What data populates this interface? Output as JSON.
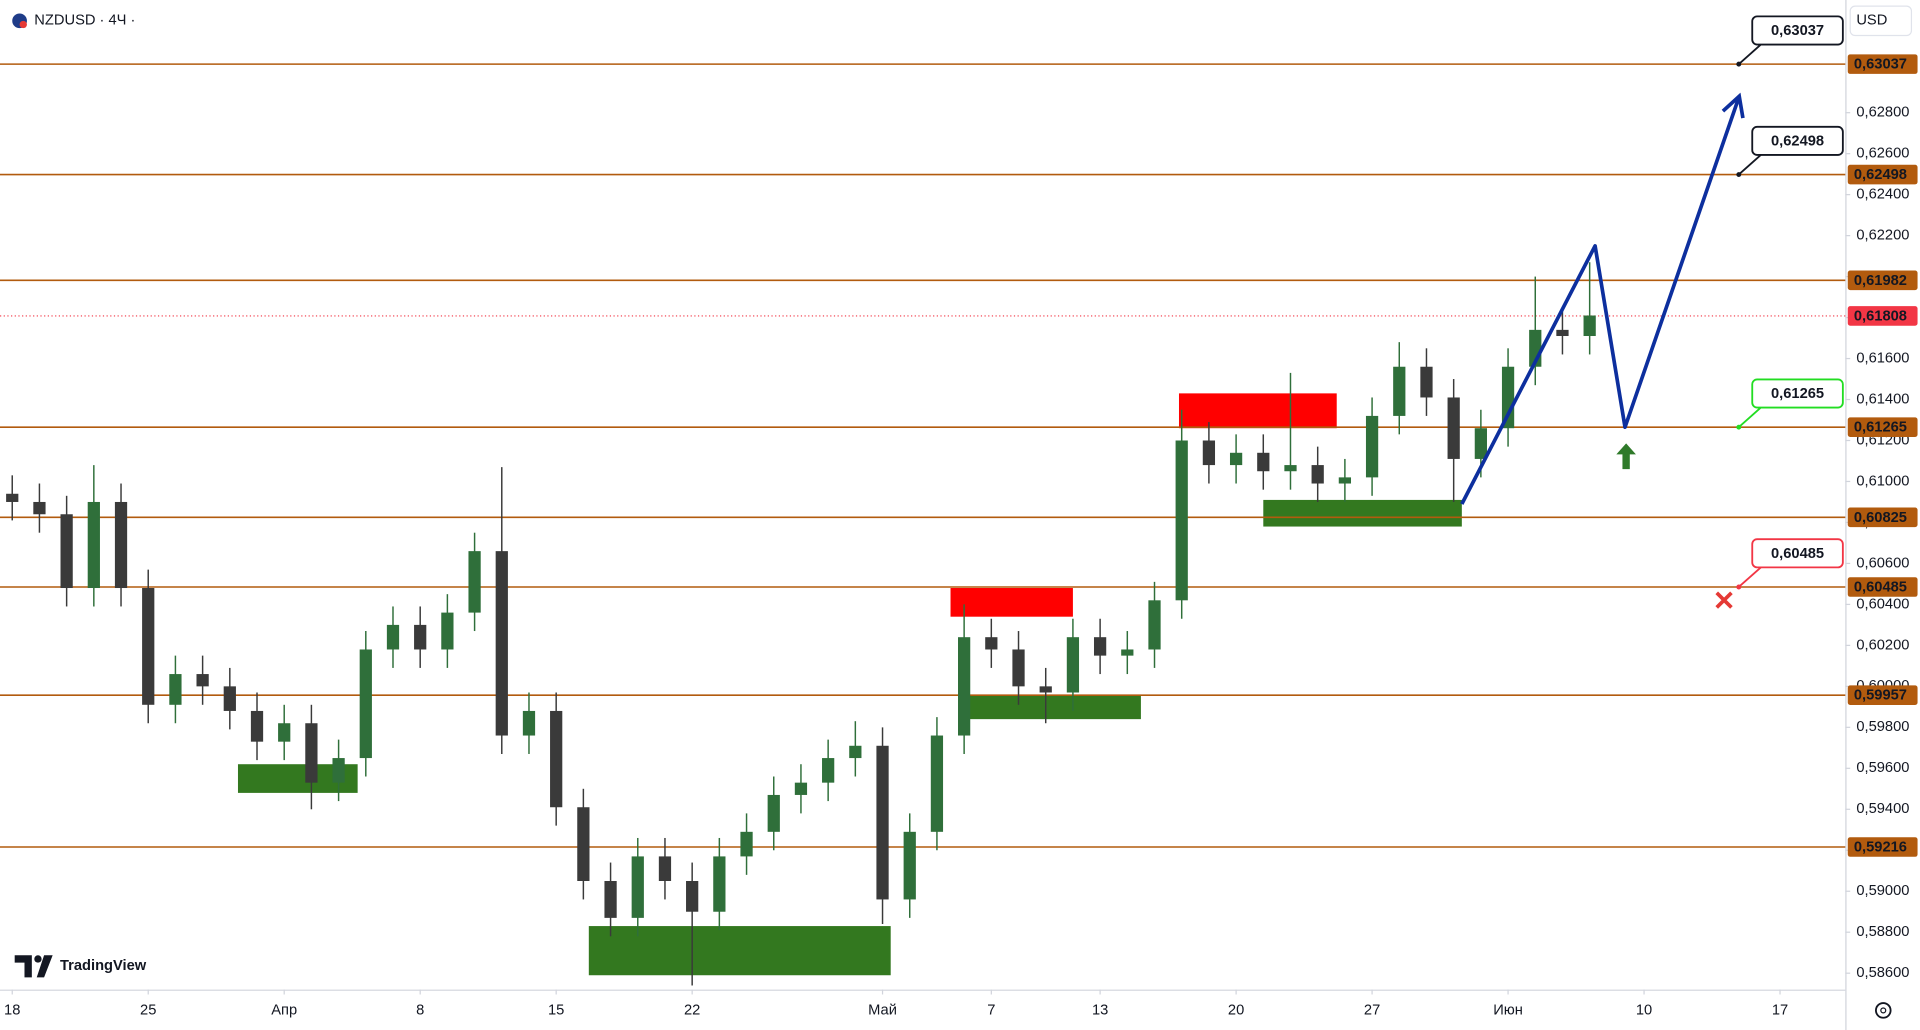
{
  "chart_data": {
    "type": "candlestick",
    "title": "NZDUSD · 4Ч ·",
    "currency": "USD",
    "brand": "TradingView",
    "grid": false,
    "up_color": "#2f6f3a",
    "down_color": "#3a3a3a",
    "xlim": [
      -0.45,
      67.4
    ],
    "xticks": [
      {
        "value": 0,
        "label": "18"
      },
      {
        "value": 5,
        "label": "25"
      },
      {
        "value": 10,
        "label": "Апр"
      },
      {
        "value": 15,
        "label": "8"
      },
      {
        "value": 20,
        "label": "15"
      },
      {
        "value": 25,
        "label": "22"
      },
      {
        "value": 32,
        "label": "Май"
      },
      {
        "value": 36,
        "label": "7"
      },
      {
        "value": 40,
        "label": "13"
      },
      {
        "value": 45,
        "label": "20"
      },
      {
        "value": 50,
        "label": "27"
      },
      {
        "value": 55,
        "label": "Июн"
      },
      {
        "value": 60,
        "label": "10"
      },
      {
        "value": 65,
        "label": "17"
      }
    ],
    "ylim": [
      0.5852,
      0.6335
    ],
    "yticks": [
      {
        "value": 0.586,
        "label": "0,58600"
      },
      {
        "value": 0.588,
        "label": "0,58800"
      },
      {
        "value": 0.59,
        "label": "0,59000"
      },
      {
        "value": 0.592,
        "label": "0,59200"
      },
      {
        "value": 0.594,
        "label": "0,59400"
      },
      {
        "value": 0.596,
        "label": "0,59600"
      },
      {
        "value": 0.598,
        "label": "0,59800"
      },
      {
        "value": 0.6,
        "label": "0,60000"
      },
      {
        "value": 0.602,
        "label": "0,60200"
      },
      {
        "value": 0.604,
        "label": "0,60400"
      },
      {
        "value": 0.606,
        "label": "0,60600"
      },
      {
        "value": 0.608,
        "label": "0,60800"
      },
      {
        "value": 0.61,
        "label": "0,61000"
      },
      {
        "value": 0.612,
        "label": "0,61200"
      },
      {
        "value": 0.614,
        "label": "0,61400"
      },
      {
        "value": 0.616,
        "label": "0,61600"
      },
      {
        "value": 0.618,
        "label": "0,61800"
      },
      {
        "value": 0.62,
        "label": "0,62000"
      },
      {
        "value": 0.622,
        "label": "0,62200"
      },
      {
        "value": 0.624,
        "label": "0,62400"
      },
      {
        "value": 0.626,
        "label": "0,62600"
      },
      {
        "value": 0.628,
        "label": "0,62800"
      }
    ],
    "x": [
      0,
      1,
      2,
      3,
      4,
      5,
      6,
      7,
      8,
      9,
      10,
      11,
      12,
      13,
      14,
      15,
      16,
      17,
      18,
      19,
      20,
      21,
      22,
      23,
      24,
      25,
      26,
      27,
      28,
      29,
      30,
      31,
      32,
      33,
      34,
      35,
      36,
      37,
      38,
      39,
      40,
      41,
      42,
      43,
      44,
      45,
      46,
      47,
      48,
      49,
      50,
      51,
      52,
      53,
      54,
      55,
      56,
      57,
      58
    ],
    "open": [
      0.6094,
      0.609,
      0.6084,
      0.6048,
      0.609,
      0.6048,
      0.5991,
      0.6006,
      0.6,
      0.5988,
      0.5973,
      0.5982,
      0.5953,
      0.5965,
      0.6018,
      0.603,
      0.6018,
      0.6036,
      0.6066,
      0.5976,
      0.5988,
      0.5941,
      0.5905,
      0.5887,
      0.5917,
      0.5905,
      0.589,
      0.5917,
      0.5929,
      0.5947,
      0.5953,
      0.5965,
      0.5971,
      0.5896,
      0.5929,
      0.5976,
      0.6024,
      0.6018,
      0.6,
      0.5997,
      0.6024,
      0.6015,
      0.6018,
      0.6042,
      0.612,
      0.6108,
      0.6114,
      0.6105,
      0.6108,
      0.6099,
      0.6102,
      0.6132,
      0.6156,
      0.6141,
      0.6111,
      0.6126,
      0.6156,
      0.6174,
      0.6171
    ],
    "high": [
      0.6103,
      0.6099,
      0.6093,
      0.6108,
      0.6099,
      0.6057,
      0.6015,
      0.6015,
      0.6009,
      0.5997,
      0.5991,
      0.5991,
      0.5974,
      0.6027,
      0.6039,
      0.6039,
      0.6045,
      0.6075,
      0.6107,
      0.5997,
      0.5997,
      0.595,
      0.5914,
      0.5926,
      0.5926,
      0.5914,
      0.5926,
      0.5938,
      0.5956,
      0.5962,
      0.5974,
      0.5983,
      0.598,
      0.5938,
      0.5985,
      0.604,
      0.6033,
      0.6027,
      0.6009,
      0.6033,
      0.6033,
      0.6027,
      0.6051,
      0.6135,
      0.6129,
      0.6123,
      0.6123,
      0.6153,
      0.6117,
      0.6111,
      0.6141,
      0.6168,
      0.6165,
      0.615,
      0.6135,
      0.6165,
      0.62,
      0.6183,
      0.6207
    ],
    "low": [
      0.6081,
      0.6075,
      0.6039,
      0.6039,
      0.6039,
      0.5982,
      0.5982,
      0.5991,
      0.5979,
      0.5964,
      0.5964,
      0.594,
      0.5944,
      0.5956,
      0.6009,
      0.6009,
      0.6009,
      0.6027,
      0.5967,
      0.5967,
      0.5932,
      0.5896,
      0.5878,
      0.5878,
      0.5896,
      0.5854,
      0.5881,
      0.5908,
      0.592,
      0.5938,
      0.5944,
      0.5956,
      0.5884,
      0.5887,
      0.592,
      0.5967,
      0.6009,
      0.5991,
      0.5982,
      0.5988,
      0.6006,
      0.6006,
      0.6009,
      0.6033,
      0.6099,
      0.6099,
      0.6096,
      0.6096,
      0.609,
      0.609,
      0.6093,
      0.6123,
      0.6132,
      0.609,
      0.6102,
      0.6117,
      0.6147,
      0.6162,
      0.6162
    ],
    "close": [
      0.609,
      0.6084,
      0.6048,
      0.609,
      0.6048,
      0.5991,
      0.6006,
      0.6,
      0.5988,
      0.5973,
      0.5982,
      0.5953,
      0.5965,
      0.6018,
      0.603,
      0.6018,
      0.6036,
      0.6066,
      0.5976,
      0.5988,
      0.5941,
      0.5905,
      0.5887,
      0.5917,
      0.5905,
      0.589,
      0.5917,
      0.5929,
      0.5947,
      0.5953,
      0.5965,
      0.5971,
      0.5896,
      0.5929,
      0.5976,
      0.6024,
      0.6018,
      0.6,
      0.5997,
      0.6024,
      0.6015,
      0.6018,
      0.6042,
      0.612,
      0.6108,
      0.6114,
      0.6105,
      0.6108,
      0.6099,
      0.6102,
      0.6132,
      0.6156,
      0.6141,
      0.6111,
      0.6126,
      0.6156,
      0.6174,
      0.6171,
      0.6181
    ],
    "levels": [
      {
        "value": 0.63037,
        "label": "0,63037",
        "color": "#b25b0e",
        "callout_color": "#131722"
      },
      {
        "value": 0.62498,
        "label": "0,62498",
        "color": "#b25b0e",
        "callout_color": "#131722"
      },
      {
        "value": 0.61982,
        "label": "0,61982",
        "color": "#b25b0e"
      },
      {
        "value": 0.61808,
        "label": "0,61808",
        "color": "#f23645",
        "style": "dotted"
      },
      {
        "value": 0.61265,
        "label": "0,61265",
        "color": "#b25b0e",
        "callout_color": "#22dd22"
      },
      {
        "value": 0.60825,
        "label": "0,60825",
        "color": "#b25b0e"
      },
      {
        "value": 0.60485,
        "label": "0,60485",
        "color": "#b25b0e",
        "callout_color": "#f23645"
      },
      {
        "value": 0.59957,
        "label": "0,59957",
        "color": "#b25b0e"
      },
      {
        "value": 0.59216,
        "label": "0,59216",
        "color": "#b25b0e"
      }
    ],
    "zones": [
      {
        "x": [
          8.3,
          12.7
        ],
        "values": [
          0.5962,
          0.5948
        ],
        "color": "#33781f"
      },
      {
        "x": [
          21.2,
          32.3
        ],
        "values": [
          0.5883,
          0.5859
        ],
        "color": "#33781f"
      },
      {
        "x": [
          34.5,
          39.0
        ],
        "values": [
          0.6048,
          0.6034
        ],
        "color": "#ff0000"
      },
      {
        "x": [
          35.1,
          41.5
        ],
        "values": [
          0.5996,
          0.5984
        ],
        "color": "#33781f"
      },
      {
        "x": [
          42.9,
          48.7
        ],
        "values": [
          0.6143,
          0.6126
        ],
        "color": "#ff0000"
      },
      {
        "x": [
          46.0,
          53.3
        ],
        "values": [
          0.6091,
          0.6078
        ],
        "color": "#33781f"
      }
    ],
    "forecast": {
      "x": [
        53.3,
        58.2,
        59.3,
        63.5
      ],
      "values": [
        0.6089,
        0.6215,
        0.61265,
        0.6288
      ],
      "color": "#0d2f9e"
    }
  }
}
